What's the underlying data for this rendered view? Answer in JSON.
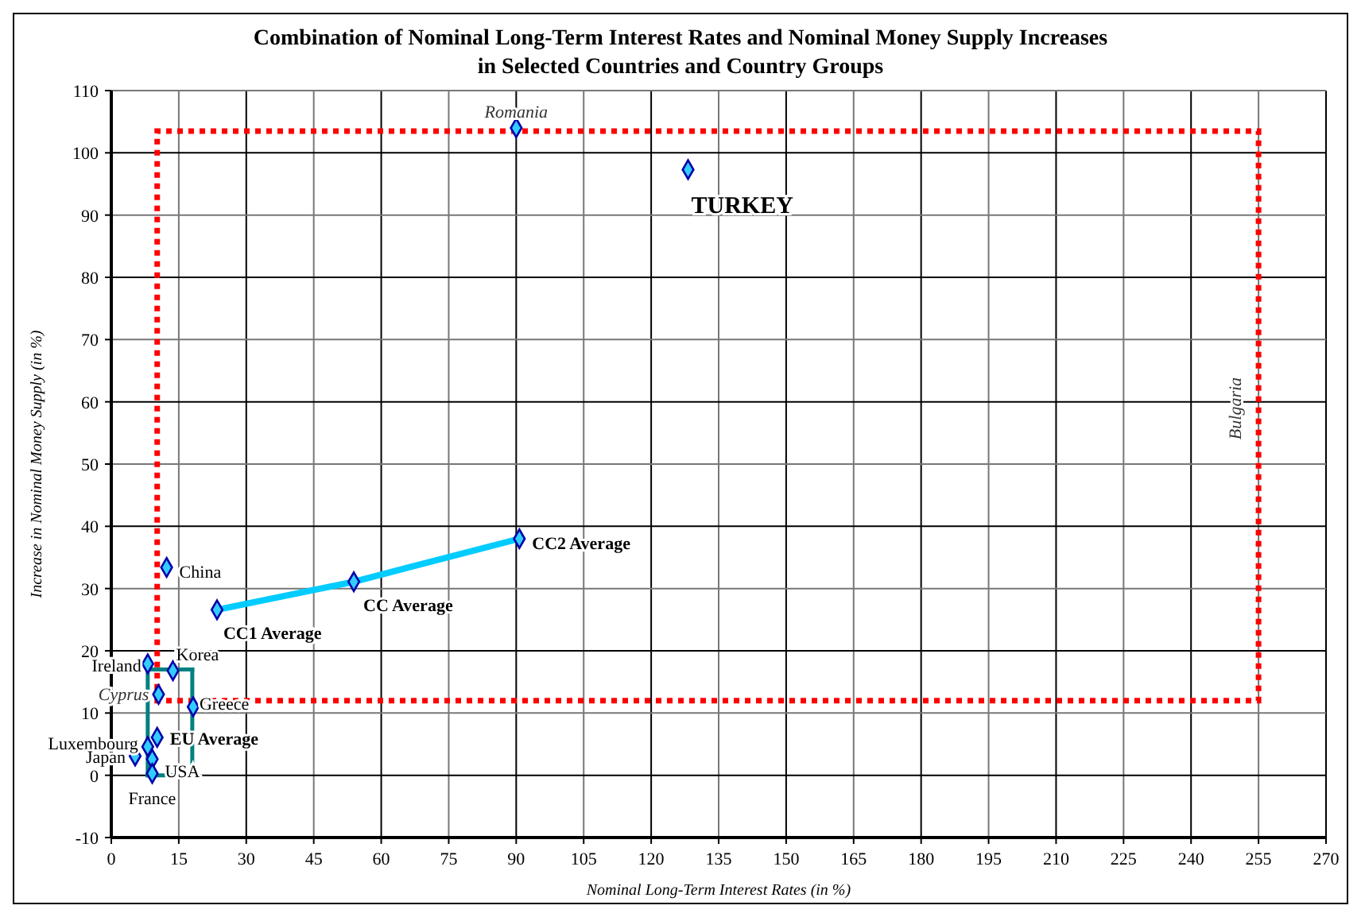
{
  "chart_data": {
    "type": "scatter",
    "title": "Combination of Nominal Long-Term Interest Rates and Nominal Money Supply Increases in Selected Countries and Country Groups",
    "xlabel": "Nominal Long-Term Interest Rates  (in %)",
    "ylabel": "Increase in Nominal Money Supply  (in %)",
    "xlim": [
      0,
      270
    ],
    "xticks": [
      0,
      15,
      30,
      45,
      60,
      75,
      90,
      105,
      120,
      135,
      150,
      165,
      180,
      195,
      210,
      225,
      240,
      255,
      270
    ],
    "ylim": [
      -10,
      110
    ],
    "yticks": [
      -10,
      0,
      10,
      20,
      30,
      40,
      50,
      60,
      70,
      80,
      90,
      100,
      110
    ],
    "grid": true,
    "marker": "diamond",
    "series": [
      {
        "type": "line",
        "color": "#00ccff",
        "x": [
          23.5,
          53.9,
          90.7
        ],
        "values": [
          26.6,
          31.1,
          38.0
        ],
        "marker": "none",
        "line_style": "solid"
      },
      {
        "color": "#33ccff",
        "x": [
          90,
          128.2,
          90.7,
          53.9,
          23.5,
          12.3,
          8.1,
          13.7,
          10.5,
          18.2,
          10.2,
          8.1,
          5.3,
          9.1,
          9.1
        ],
        "values": [
          104,
          97.3,
          38.0,
          31.1,
          26.6,
          33.4,
          17.9,
          16.8,
          13.0,
          11.0,
          6.1,
          4.6,
          3.1,
          2.6,
          0.3
        ]
      }
    ],
    "annotations": [
      {
        "text": "Romania",
        "x": 90,
        "y": 104
      },
      {
        "text": "TURKEY",
        "x": 128.2,
        "y": 97.3
      },
      {
        "text": "CC2  Average",
        "x": 90.7,
        "y": 38.0
      },
      {
        "text": "CC Average",
        "x": 53.9,
        "y": 31.1
      },
      {
        "text": "CC1 Average",
        "x": 23.5,
        "y": 26.6
      },
      {
        "text": "China",
        "x": 12.3,
        "y": 33.4
      },
      {
        "text": "Ireland",
        "x": 8.1,
        "y": 17.9
      },
      {
        "text": "Korea",
        "x": 13.7,
        "y": 16.8
      },
      {
        "text": "Cyprus",
        "x": 10.5,
        "y": 13.0
      },
      {
        "text": "Greece",
        "x": 18.2,
        "y": 11.0
      },
      {
        "text": "EU Average",
        "x": 10.2,
        "y": 6.1
      },
      {
        "text": "Luxembourg",
        "x": 8.1,
        "y": 4.6
      },
      {
        "text": "Japan",
        "x": 5.3,
        "y": 3.1
      },
      {
        "text": "USA",
        "x": 9.1,
        "y": 2.6
      },
      {
        "text": "France",
        "x": 9.1,
        "y": 0.3
      },
      "Bulgaria"
    ]
  }
}
